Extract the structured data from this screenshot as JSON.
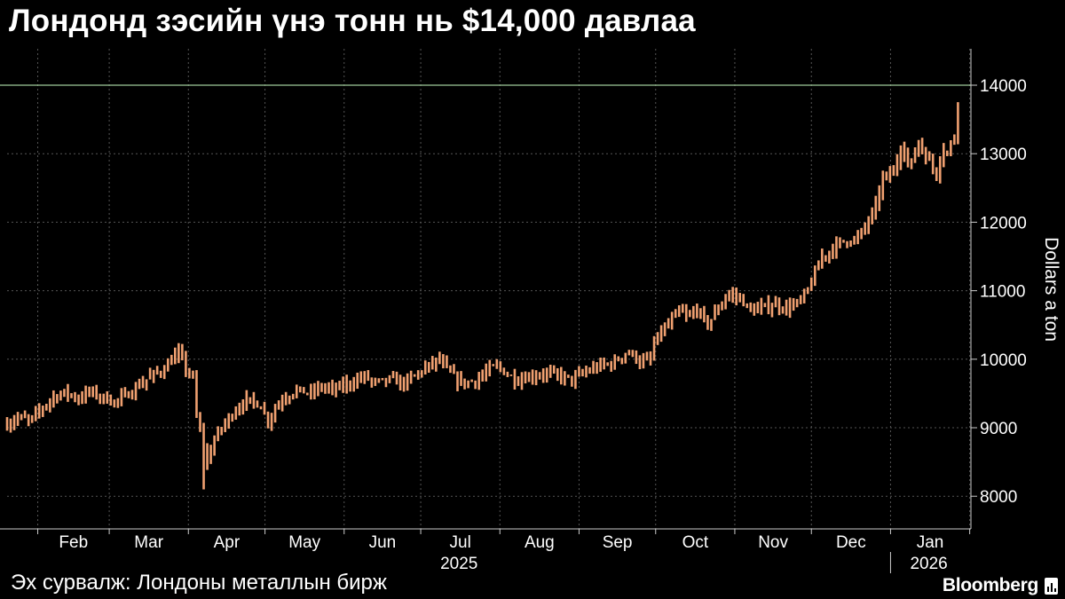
{
  "title": "Лондонд зэсийн үнэ тонн нь $14,000 давлаа",
  "source": "Эх сурвалж: Лондоны металлын бирж",
  "brand": "Bloomberg",
  "colors": {
    "background": "#000000",
    "bar": "#f0a070",
    "grid": "#555555",
    "reference_line": "#9ec999",
    "text": "#ffffff"
  },
  "chart_data": {
    "type": "bar",
    "subtype": "ohlc-range",
    "ylabel": "Dollars a ton",
    "ylim": [
      7600,
      14700
    ],
    "y_ticks": [
      8000,
      9000,
      10000,
      11000,
      12000,
      13000,
      14000
    ],
    "y_tick_labels": [
      "8000",
      "9000",
      "10000",
      "11000",
      "12000",
      "13000",
      "14000"
    ],
    "reference_line": 14000,
    "grid": true,
    "x_tick_labels": [
      "Feb",
      "Mar",
      "Apr",
      "May",
      "Jun",
      "Jul",
      "Aug",
      "Sep",
      "Oct",
      "Nov",
      "Dec",
      "Jan"
    ],
    "year_labels": [
      "2025",
      "2026"
    ],
    "anchors": [
      [
        "2025-01-20",
        9050
      ],
      [
        "2025-01-24",
        9150
      ],
      [
        "2025-01-29",
        9100
      ],
      [
        "2025-02-03",
        9300
      ],
      [
        "2025-02-07",
        9450
      ],
      [
        "2025-02-12",
        9520
      ],
      [
        "2025-02-17",
        9420
      ],
      [
        "2025-02-21",
        9530
      ],
      [
        "2025-02-26",
        9450
      ],
      [
        "2025-03-03",
        9380
      ],
      [
        "2025-03-07",
        9450
      ],
      [
        "2025-03-12",
        9600
      ],
      [
        "2025-03-17",
        9750
      ],
      [
        "2025-03-21",
        9820
      ],
      [
        "2025-03-26",
        10000
      ],
      [
        "2025-03-28",
        10100
      ],
      [
        "2025-04-01",
        9800
      ],
      [
        "2025-04-03",
        9700
      ],
      [
        "2025-04-04",
        9200
      ],
      [
        "2025-04-07",
        8700
      ],
      [
        "2025-04-08",
        8400
      ],
      [
        "2025-04-10",
        8750
      ],
      [
        "2025-04-14",
        9000
      ],
      [
        "2025-04-18",
        9200
      ],
      [
        "2025-04-23",
        9400
      ],
      [
        "2025-04-29",
        9350
      ],
      [
        "2025-05-02",
        9100
      ],
      [
        "2025-05-07",
        9400
      ],
      [
        "2025-05-13",
        9550
      ],
      [
        "2025-05-19",
        9500
      ],
      [
        "2025-05-23",
        9600
      ],
      [
        "2025-05-28",
        9550
      ],
      [
        "2025-06-03",
        9650
      ],
      [
        "2025-06-09",
        9750
      ],
      [
        "2025-06-13",
        9650
      ],
      [
        "2025-06-19",
        9700
      ],
      [
        "2025-06-25",
        9650
      ],
      [
        "2025-06-30",
        9800
      ],
      [
        "2025-07-04",
        9900
      ],
      [
        "2025-07-08",
        10000
      ],
      [
        "2025-07-11",
        9850
      ],
      [
        "2025-07-15",
        9700
      ],
      [
        "2025-07-18",
        9650
      ],
      [
        "2025-07-23",
        9700
      ],
      [
        "2025-07-28",
        9850
      ],
      [
        "2025-07-31",
        9900
      ],
      [
        "2025-08-05",
        9750
      ],
      [
        "2025-08-08",
        9700
      ],
      [
        "2025-08-13",
        9750
      ],
      [
        "2025-08-19",
        9800
      ],
      [
        "2025-08-25",
        9750
      ],
      [
        "2025-08-29",
        9700
      ],
      [
        "2025-09-03",
        9800
      ],
      [
        "2025-09-09",
        9900
      ],
      [
        "2025-09-15",
        9950
      ],
      [
        "2025-09-19",
        10100
      ],
      [
        "2025-09-23",
        10050
      ],
      [
        "2025-09-25",
        9950
      ],
      [
        "2025-09-29",
        10000
      ],
      [
        "2025-10-01",
        10300
      ],
      [
        "2025-10-06",
        10500
      ],
      [
        "2025-10-10",
        10700
      ],
      [
        "2025-10-14",
        10600
      ],
      [
        "2025-10-17",
        10750
      ],
      [
        "2025-10-21",
        10500
      ],
      [
        "2025-10-24",
        10650
      ],
      [
        "2025-10-29",
        10950
      ],
      [
        "2025-11-03",
        10900
      ],
      [
        "2025-11-07",
        10700
      ],
      [
        "2025-11-12",
        10750
      ],
      [
        "2025-11-17",
        10800
      ],
      [
        "2025-11-21",
        10750
      ],
      [
        "2025-11-25",
        10800
      ],
      [
        "2025-11-28",
        10900
      ],
      [
        "2025-12-02",
        11200
      ],
      [
        "2025-12-05",
        11500
      ],
      [
        "2025-12-09",
        11600
      ],
      [
        "2025-12-12",
        11700
      ],
      [
        "2025-12-16",
        11750
      ],
      [
        "2025-12-19",
        11750
      ],
      [
        "2025-12-23",
        12000
      ],
      [
        "2025-12-26",
        12200
      ],
      [
        "2025-12-29",
        12650
      ],
      [
        "2026-01-02",
        12700
      ],
      [
        "2026-01-05",
        13100
      ],
      [
        "2026-01-07",
        13000
      ],
      [
        "2026-01-09",
        12800
      ],
      [
        "2026-01-12",
        13200
      ],
      [
        "2026-01-14",
        13000
      ],
      [
        "2026-01-16",
        12900
      ],
      [
        "2026-01-19",
        12700
      ],
      [
        "2026-01-21",
        13100
      ],
      [
        "2026-01-23",
        13000
      ],
      [
        "2026-01-26",
        13250
      ],
      [
        "2026-01-27",
        13600
      ],
      [
        "2026-01-28",
        14050
      ]
    ]
  }
}
